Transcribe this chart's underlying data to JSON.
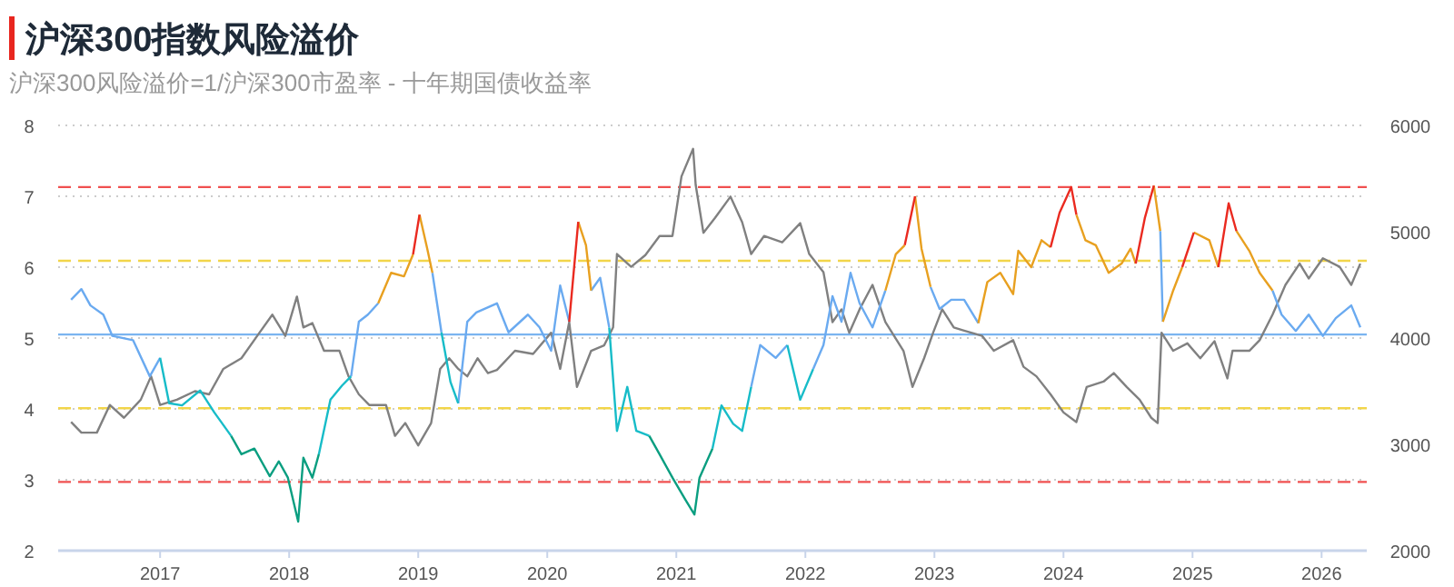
{
  "chart_data": {
    "type": "line",
    "title": "沪深300指数风险溢价",
    "subtitle": "沪深300风险溢价=1/沪深300市盈率 - 十年期国债收益率",
    "xlim": [
      2016.21,
      2026.35
    ],
    "xticks": [
      2017,
      2018,
      2019,
      2020,
      2021,
      2022,
      2023,
      2024,
      2025,
      2026
    ],
    "ylim": [
      2,
      8
    ],
    "yticks": [
      2,
      3,
      4,
      5,
      6,
      7,
      8
    ],
    "y2lim": [
      2000,
      6000
    ],
    "y2ticks": [
      2000,
      3000,
      4000,
      5000,
      6000
    ],
    "grid": "y",
    "ref_lines": [
      {
        "axis": "y",
        "value": 7.13,
        "color": "#f05050",
        "line_style": "dashed"
      },
      {
        "axis": "y",
        "value": 6.09,
        "color": "#f2d54a",
        "line_style": "dashed"
      },
      {
        "axis": "y",
        "value": 5.05,
        "color": "#7ab4f0",
        "line_style": "solid"
      },
      {
        "axis": "y",
        "value": 4.01,
        "color": "#f2d54a",
        "line_style": "dashed"
      },
      {
        "axis": "y",
        "value": 2.97,
        "color": "#f05050",
        "line_style": "dashed"
      }
    ],
    "series": [
      {
        "color": "#808080",
        "axis": "y2",
        "x": [
          2016.31,
          2016.39,
          2016.51,
          2016.61,
          2016.72,
          2016.85,
          2016.93,
          2017.0,
          2017.13,
          2017.27,
          2017.38,
          2017.49,
          2017.63,
          2017.77,
          2017.87,
          2017.97,
          2018.06,
          2018.11,
          2018.18,
          2018.27,
          2018.39,
          2018.46,
          2018.54,
          2018.62,
          2018.75,
          2018.82,
          2018.9,
          2019.0,
          2019.1,
          2019.17,
          2019.24,
          2019.31,
          2019.38,
          2019.46,
          2019.54,
          2019.61,
          2019.75,
          2019.89,
          2020.03,
          2020.1,
          2020.17,
          2020.23,
          2020.34,
          2020.44,
          2020.51,
          2020.54,
          2020.65,
          2020.76,
          2020.87,
          2020.97,
          2021.04,
          2021.13,
          2021.15,
          2021.21,
          2021.3,
          2021.42,
          2021.51,
          2021.58,
          2021.68,
          2021.82,
          2021.96,
          2022.03,
          2022.14,
          2022.21,
          2022.28,
          2022.34,
          2022.42,
          2022.52,
          2022.62,
          2022.76,
          2022.83,
          2022.92,
          2022.99,
          2023.06,
          2023.15,
          2023.23,
          2023.37,
          2023.46,
          2023.61,
          2023.69,
          2023.79,
          2023.9,
          2024.0,
          2024.1,
          2024.18,
          2024.31,
          2024.39,
          2024.49,
          2024.59,
          2024.68,
          2024.73,
          2024.76,
          2024.85,
          2024.96,
          2025.06,
          2025.17,
          2025.27,
          2025.31,
          2025.44,
          2025.52,
          2025.62,
          2025.72,
          2025.83,
          2025.9,
          2026.01,
          2026.14,
          2026.23,
          2026.3
        ],
        "values": [
          3210,
          3110,
          3110,
          3370,
          3250,
          3420,
          3640,
          3370,
          3420,
          3500,
          3470,
          3710,
          3810,
          4050,
          4220,
          4020,
          4390,
          4100,
          4140,
          3880,
          3880,
          3640,
          3470,
          3370,
          3370,
          3080,
          3200,
          2990,
          3200,
          3710,
          3810,
          3710,
          3640,
          3810,
          3670,
          3700,
          3880,
          3850,
          4050,
          3710,
          4150,
          3540,
          3880,
          3930,
          4100,
          4790,
          4670,
          4780,
          4960,
          4960,
          5520,
          5780,
          5440,
          4990,
          5130,
          5330,
          5090,
          4790,
          4960,
          4900,
          5080,
          4790,
          4620,
          4150,
          4270,
          4050,
          4270,
          4500,
          4150,
          3880,
          3540,
          3810,
          4050,
          4270,
          4100,
          4070,
          4020,
          3880,
          3980,
          3730,
          3640,
          3470,
          3300,
          3210,
          3540,
          3590,
          3670,
          3540,
          3420,
          3250,
          3200,
          4050,
          3880,
          3950,
          3810,
          3970,
          3620,
          3880,
          3880,
          3980,
          4220,
          4500,
          4700,
          4560,
          4750,
          4670,
          4500,
          4700
        ]
      },
      {
        "color": "#6aaaf0",
        "x": [
          2016.31,
          2016.39,
          2016.46,
          2016.56,
          2016.63,
          2016.79,
          2016.92,
          2017.0,
          null,
          2018.48,
          2018.54,
          2018.61,
          2018.69,
          null,
          2019.11,
          2019.18,
          null,
          2019.31,
          2019.38,
          2019.45,
          2019.61,
          2019.7,
          2019.85,
          2019.94,
          2020.03,
          2020.1,
          2020.17,
          null,
          2020.34,
          2020.41,
          2020.48,
          null,
          2021.58,
          2021.65,
          2021.77,
          2021.86,
          null,
          2022.06,
          2022.14,
          2022.21,
          2022.28,
          2022.35,
          2022.42,
          2022.52,
          2022.62,
          null,
          2022.97,
          2023.04,
          2023.13,
          2023.23,
          2023.34,
          null,
          2024.75,
          2024.77,
          null,
          2025.62,
          2025.69,
          2025.8,
          2025.9,
          2026.01,
          2026.11,
          2026.23,
          2026.3
        ],
        "values": [
          5.54,
          5.69,
          5.46,
          5.33,
          5.03,
          4.97,
          4.46,
          4.72,
          null,
          4.46,
          5.23,
          5.33,
          5.49,
          null,
          5.92,
          5.08,
          null,
          4.08,
          5.23,
          5.36,
          5.49,
          5.08,
          5.33,
          5.15,
          4.82,
          5.74,
          5.23,
          null,
          5.67,
          5.85,
          5.15,
          null,
          4.31,
          4.9,
          4.72,
          4.9,
          null,
          4.56,
          4.9,
          5.59,
          5.23,
          5.92,
          5.49,
          5.15,
          5.67,
          null,
          5.72,
          5.41,
          5.54,
          5.54,
          5.21,
          null,
          6.51,
          5.23,
          null,
          5.67,
          5.33,
          5.1,
          5.33,
          5.03,
          5.28,
          5.46,
          5.15
        ]
      },
      {
        "color": "#17bcc8",
        "x": [
          2017.0,
          2017.07,
          2017.17,
          2017.31,
          2017.42,
          2017.55,
          null,
          2018.23,
          2018.32,
          2018.41,
          2018.48,
          null,
          2019.18,
          2019.25,
          2019.31,
          null,
          2020.48,
          2020.54,
          2020.62,
          2020.69,
          2020.79,
          null,
          2021.28,
          2021.35,
          2021.44,
          2021.51,
          2021.58,
          null,
          2021.86,
          2021.96,
          2022.06
        ],
        "values": [
          4.72,
          4.08,
          4.05,
          4.26,
          3.95,
          3.62,
          null,
          3.36,
          4.13,
          4.33,
          4.46,
          null,
          5.08,
          4.38,
          4.08,
          null,
          5.15,
          3.69,
          4.31,
          3.69,
          3.62,
          null,
          3.44,
          4.05,
          3.79,
          3.69,
          4.31,
          null,
          4.9,
          4.13,
          4.56
        ]
      },
      {
        "color": "#0a9e80",
        "x": [
          2017.55,
          2017.63,
          2017.73,
          2017.85,
          2017.92,
          2017.99,
          2018.07,
          2018.11,
          2018.18,
          2018.23,
          null,
          2020.79,
          2020.87,
          2020.97,
          2021.07,
          2021.14,
          2021.18,
          2021.28
        ],
        "values": [
          3.62,
          3.36,
          3.44,
          3.05,
          3.26,
          3.03,
          2.41,
          3.31,
          3.03,
          3.36,
          null,
          3.62,
          3.36,
          3.03,
          2.72,
          2.51,
          3.03,
          3.44
        ]
      },
      {
        "color": "#e8a020",
        "x": [
          2018.69,
          2018.79,
          2018.89,
          2018.96,
          null,
          2019.01,
          2019.07,
          2019.11,
          null,
          2020.24,
          2020.3,
          2020.34,
          null,
          2022.62,
          2022.7,
          2022.77,
          null,
          2022.85,
          2022.9,
          2022.97,
          null,
          2023.34,
          2023.41,
          2023.51,
          2023.61,
          2023.65,
          2023.75,
          2023.83,
          2023.9,
          null,
          2024.1,
          2024.17,
          2024.25,
          2024.35,
          2024.45,
          2024.52,
          2024.56,
          null,
          2024.7,
          2024.75,
          null,
          2024.77,
          2024.85,
          2024.92,
          null,
          2025.01,
          2025.13,
          2025.2,
          null,
          2025.34,
          2025.44,
          2025.52,
          2025.62
        ],
        "values": [
          5.49,
          5.92,
          5.87,
          6.18,
          null,
          6.74,
          6.26,
          5.92,
          null,
          6.64,
          6.31,
          5.67,
          null,
          5.67,
          6.18,
          6.31,
          null,
          7.0,
          6.26,
          5.72,
          null,
          5.21,
          5.79,
          5.92,
          5.62,
          6.23,
          6.0,
          6.38,
          6.28,
          null,
          6.74,
          6.38,
          6.31,
          5.92,
          6.05,
          6.26,
          6.05,
          null,
          7.15,
          6.51,
          null,
          5.23,
          5.67,
          6.0,
          null,
          6.49,
          6.38,
          6.0,
          null,
          6.51,
          6.23,
          5.92,
          5.67
        ]
      },
      {
        "color": "#ea2a20",
        "x": [
          2018.96,
          2019.01,
          null,
          2020.17,
          2020.24,
          null,
          2022.77,
          2022.85,
          null,
          2023.9,
          2023.97,
          2024.06,
          2024.1,
          null,
          2024.56,
          2024.63,
          2024.7,
          null,
          2024.92,
          2025.01,
          null,
          2025.2,
          2025.28,
          2025.34
        ],
        "values": [
          6.18,
          6.74,
          null,
          5.23,
          6.64,
          null,
          6.31,
          7.0,
          null,
          6.28,
          6.77,
          7.13,
          6.74,
          null,
          6.05,
          6.69,
          7.15,
          null,
          6.0,
          6.49,
          null,
          6.0,
          6.9,
          6.51
        ]
      }
    ]
  }
}
